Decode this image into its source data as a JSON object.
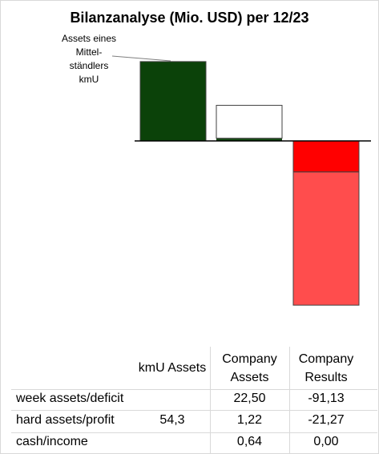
{
  "chart_data": {
    "type": "bar",
    "title": "Bilanzanalyse  (Mio. USD) per 12/23",
    "annotation": "Assets eines\nMittel-\nständlers\nkmU",
    "categories": [
      "kmU Assets",
      "Company Assets",
      "Company Results"
    ],
    "series": [
      {
        "values": [
          54.3,
          1.22,
          -21.27
        ]
      },
      {
        "values": [
          0,
          0.64,
          0.0
        ]
      },
      {
        "values": [
          0,
          22.5,
          -91.13
        ]
      }
    ],
    "ylim": [
      -91.13,
      54.3
    ],
    "colors": {
      "kmU_hard": "#0b4209",
      "company_assets_hard": "#0b4209",
      "company_assets_week": "#ffffff",
      "results_profit": "#ff0000",
      "results_deficit": "#ff4d4d",
      "outline": "#404040",
      "axis": "#000000"
    },
    "table": {
      "headers": [
        "kmU Assets",
        "Company\nAssets",
        "Company\nResults"
      ],
      "rows": [
        {
          "label": "week assets/deficit",
          "values": [
            "",
            "22,50",
            "-91,13"
          ]
        },
        {
          "label": "hard assets/profit",
          "values": [
            "54,3",
            "1,22",
            "-21,27"
          ]
        },
        {
          "label": "cash/income",
          "values": [
            "",
            "0,64",
            "0,00"
          ]
        }
      ]
    }
  }
}
